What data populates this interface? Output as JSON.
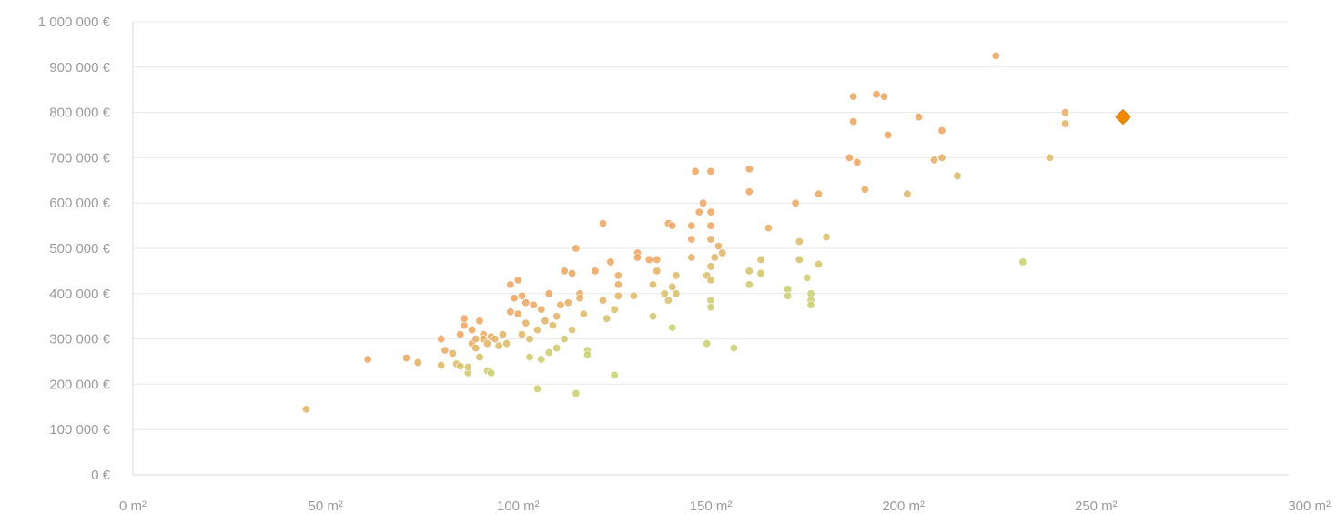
{
  "chart_data": {
    "type": "scatter",
    "title": "",
    "xlabel": "",
    "ylabel": "",
    "xlim": [
      0,
      300
    ],
    "ylim": [
      0,
      1000000
    ],
    "grid": true,
    "legend": "none",
    "x_ticks": [
      "0 m²",
      "50 m²",
      "100 m²",
      "150 m²",
      "200 m²",
      "250 m²",
      "300 m²"
    ],
    "y_ticks": [
      "0 €",
      "100 000 €",
      "200 000 €",
      "300 000 €",
      "400 000 €",
      "500 000 €",
      "600 000 €",
      "700 000 €",
      "800 000 €",
      "900 000 €",
      "1 000 000 €"
    ],
    "colors": {
      "point_low": "#c9cf6a",
      "point_high": "#f0a35a",
      "highlight": "#f08a00"
    },
    "series": [
      {
        "points": [
          [
            45,
            145000
          ],
          [
            61,
            255000
          ],
          [
            71,
            258000
          ],
          [
            74,
            248000
          ],
          [
            80,
            300000
          ],
          [
            80,
            242000
          ],
          [
            81,
            275000
          ],
          [
            83,
            268000
          ],
          [
            84,
            245000
          ],
          [
            85,
            240000
          ],
          [
            85,
            310000
          ],
          [
            86,
            330000
          ],
          [
            86,
            345000
          ],
          [
            87,
            225000
          ],
          [
            87,
            238000
          ],
          [
            88,
            320000
          ],
          [
            88,
            290000
          ],
          [
            89,
            300000
          ],
          [
            89,
            280000
          ],
          [
            90,
            340000
          ],
          [
            90,
            260000
          ],
          [
            91,
            310000
          ],
          [
            91,
            300000
          ],
          [
            92,
            230000
          ],
          [
            92,
            290000
          ],
          [
            93,
            225000
          ],
          [
            93,
            305000
          ],
          [
            94,
            300000
          ],
          [
            95,
            285000
          ],
          [
            96,
            310000
          ],
          [
            97,
            290000
          ],
          [
            98,
            360000
          ],
          [
            98,
            420000
          ],
          [
            99,
            390000
          ],
          [
            100,
            430000
          ],
          [
            100,
            355000
          ],
          [
            101,
            395000
          ],
          [
            101,
            310000
          ],
          [
            102,
            380000
          ],
          [
            102,
            335000
          ],
          [
            103,
            300000
          ],
          [
            103,
            260000
          ],
          [
            104,
            375000
          ],
          [
            105,
            190000
          ],
          [
            105,
            320000
          ],
          [
            106,
            255000
          ],
          [
            106,
            365000
          ],
          [
            107,
            340000
          ],
          [
            108,
            400000
          ],
          [
            108,
            270000
          ],
          [
            109,
            330000
          ],
          [
            110,
            350000
          ],
          [
            110,
            280000
          ],
          [
            111,
            375000
          ],
          [
            112,
            300000
          ],
          [
            112,
            450000
          ],
          [
            113,
            380000
          ],
          [
            114,
            445000
          ],
          [
            114,
            320000
          ],
          [
            115,
            500000
          ],
          [
            115,
            180000
          ],
          [
            116,
            400000
          ],
          [
            116,
            390000
          ],
          [
            117,
            355000
          ],
          [
            118,
            275000
          ],
          [
            118,
            265000
          ],
          [
            120,
            450000
          ],
          [
            122,
            385000
          ],
          [
            122,
            555000
          ],
          [
            123,
            345000
          ],
          [
            124,
            470000
          ],
          [
            125,
            220000
          ],
          [
            125,
            365000
          ],
          [
            126,
            440000
          ],
          [
            126,
            395000
          ],
          [
            126,
            420000
          ],
          [
            130,
            395000
          ],
          [
            131,
            490000
          ],
          [
            131,
            480000
          ],
          [
            134,
            475000
          ],
          [
            135,
            420000
          ],
          [
            135,
            350000
          ],
          [
            136,
            475000
          ],
          [
            136,
            450000
          ],
          [
            138,
            400000
          ],
          [
            139,
            555000
          ],
          [
            139,
            385000
          ],
          [
            140,
            325000
          ],
          [
            140,
            550000
          ],
          [
            140,
            415000
          ],
          [
            141,
            440000
          ],
          [
            141,
            400000
          ],
          [
            145,
            550000
          ],
          [
            145,
            520000
          ],
          [
            145,
            480000
          ],
          [
            146,
            670000
          ],
          [
            147,
            580000
          ],
          [
            148,
            600000
          ],
          [
            149,
            290000
          ],
          [
            149,
            440000
          ],
          [
            150,
            670000
          ],
          [
            150,
            580000
          ],
          [
            150,
            550000
          ],
          [
            150,
            520000
          ],
          [
            150,
            430000
          ],
          [
            150,
            460000
          ],
          [
            150,
            385000
          ],
          [
            150,
            370000
          ],
          [
            151,
            480000
          ],
          [
            152,
            505000
          ],
          [
            153,
            490000
          ],
          [
            156,
            280000
          ],
          [
            160,
            675000
          ],
          [
            160,
            625000
          ],
          [
            160,
            450000
          ],
          [
            160,
            420000
          ],
          [
            163,
            475000
          ],
          [
            163,
            445000
          ],
          [
            165,
            545000
          ],
          [
            170,
            410000
          ],
          [
            170,
            395000
          ],
          [
            172,
            600000
          ],
          [
            173,
            515000
          ],
          [
            173,
            475000
          ],
          [
            175,
            435000
          ],
          [
            176,
            400000
          ],
          [
            176,
            385000
          ],
          [
            176,
            375000
          ],
          [
            178,
            620000
          ],
          [
            178,
            465000
          ],
          [
            180,
            525000
          ],
          [
            186,
            700000
          ],
          [
            187,
            835000
          ],
          [
            187,
            780000
          ],
          [
            188,
            690000
          ],
          [
            190,
            630000
          ],
          [
            193,
            840000
          ],
          [
            195,
            835000
          ],
          [
            196,
            750000
          ],
          [
            201,
            620000
          ],
          [
            204,
            790000
          ],
          [
            208,
            695000
          ],
          [
            210,
            760000
          ],
          [
            210,
            700000
          ],
          [
            214,
            660000
          ],
          [
            224,
            925000
          ],
          [
            231,
            470000
          ],
          [
            238,
            700000
          ],
          [
            242,
            800000
          ],
          [
            242,
            775000
          ]
        ]
      },
      {
        "points": [
          [
            257,
            790000
          ]
        ]
      }
    ]
  }
}
